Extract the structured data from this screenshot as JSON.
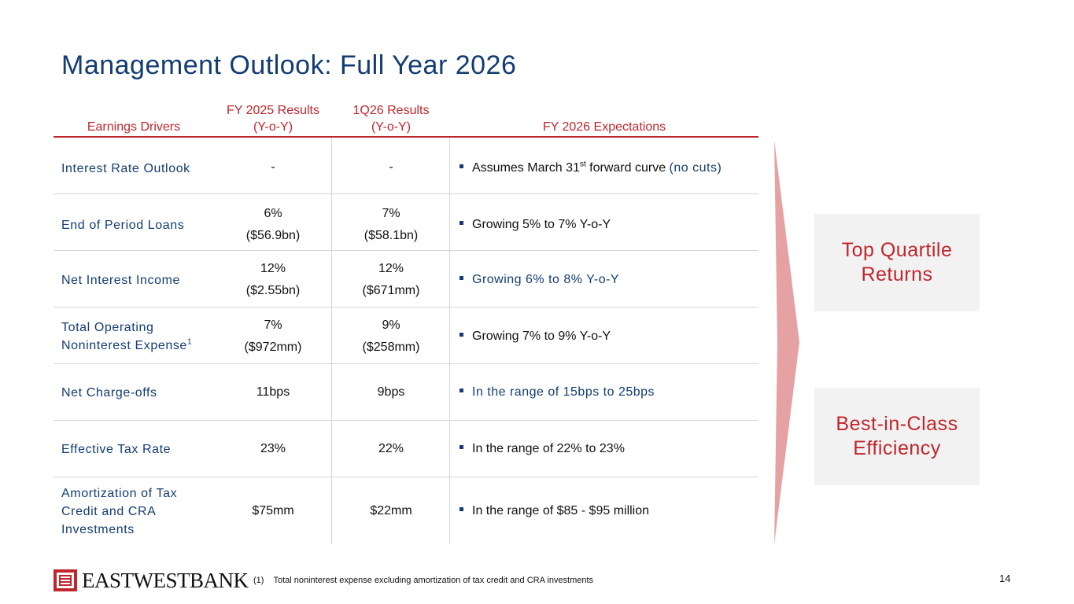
{
  "title": "Management Outlook: Full Year 2026",
  "headers": {
    "drivers": "Earnings Drivers",
    "fy2025_l1": "FY 2025 Results",
    "fy2025_l2": "(Y-o-Y)",
    "q1_l1": "1Q26 Results",
    "q1_l2": "(Y-o-Y)",
    "expectations": "FY 2026 Expectations"
  },
  "rows": [
    {
      "driver": "Interest Rate Outlook",
      "fy25": "-",
      "q126": "-",
      "exp_pre": "Assumes March 31",
      "exp_sup": "st",
      "exp_mid": " forward curve ",
      "exp_hl": "(no cuts)"
    },
    {
      "driver": "End of Period Loans",
      "fy25_a": "6%",
      "fy25_b": "($56.9bn)",
      "q126_a": "7%",
      "q126_b": "($58.1bn)",
      "exp": "Growing 5% to 7% Y-o-Y"
    },
    {
      "driver": "Net Interest Income",
      "fy25_a": "12%",
      "fy25_b": "($2.55bn)",
      "q126_a": "12%",
      "q126_b": "($671mm)",
      "exp": "Growing 6% to 8% Y-o-Y"
    },
    {
      "driver_l1": "Total Operating",
      "driver_l2": "Noninterest Expense",
      "driver_sup": "1",
      "fy25_a": "7%",
      "fy25_b": "($972mm)",
      "q126_a": "9%",
      "q126_b": "($258mm)",
      "exp": "Growing 7% to 9% Y-o-Y"
    },
    {
      "driver": "Net Charge-offs",
      "fy25": "11bps",
      "q126": "9bps",
      "exp": "In the range of 15bps to 25bps"
    },
    {
      "driver": "Effective Tax Rate",
      "fy25": "23%",
      "q126": "22%",
      "exp": "In the range of 22% to 23%"
    },
    {
      "driver_l1": "Amortization of Tax",
      "driver_l2": "Credit and CRA",
      "driver_l3": "Investments",
      "fy25": "$75mm",
      "q126": "$22mm",
      "exp": "In the range of $85 - $95 million"
    }
  ],
  "boxes": {
    "top_quartile": "Top Quartile Returns",
    "best_in_class": "Best-in-Class Efficiency"
  },
  "footnote": {
    "marker": "(1)",
    "text": "Total noninterest expense excluding amortization of tax credit and CRA investments"
  },
  "page_number": "14",
  "logo": {
    "name": "EASTWESTBANK",
    "icon": "east-west-bank-logo-icon"
  },
  "colors": {
    "navy": "#123c73",
    "red": "#c0262c",
    "arrow": "#e6a1a3",
    "box_bg": "#f2f2f2"
  }
}
